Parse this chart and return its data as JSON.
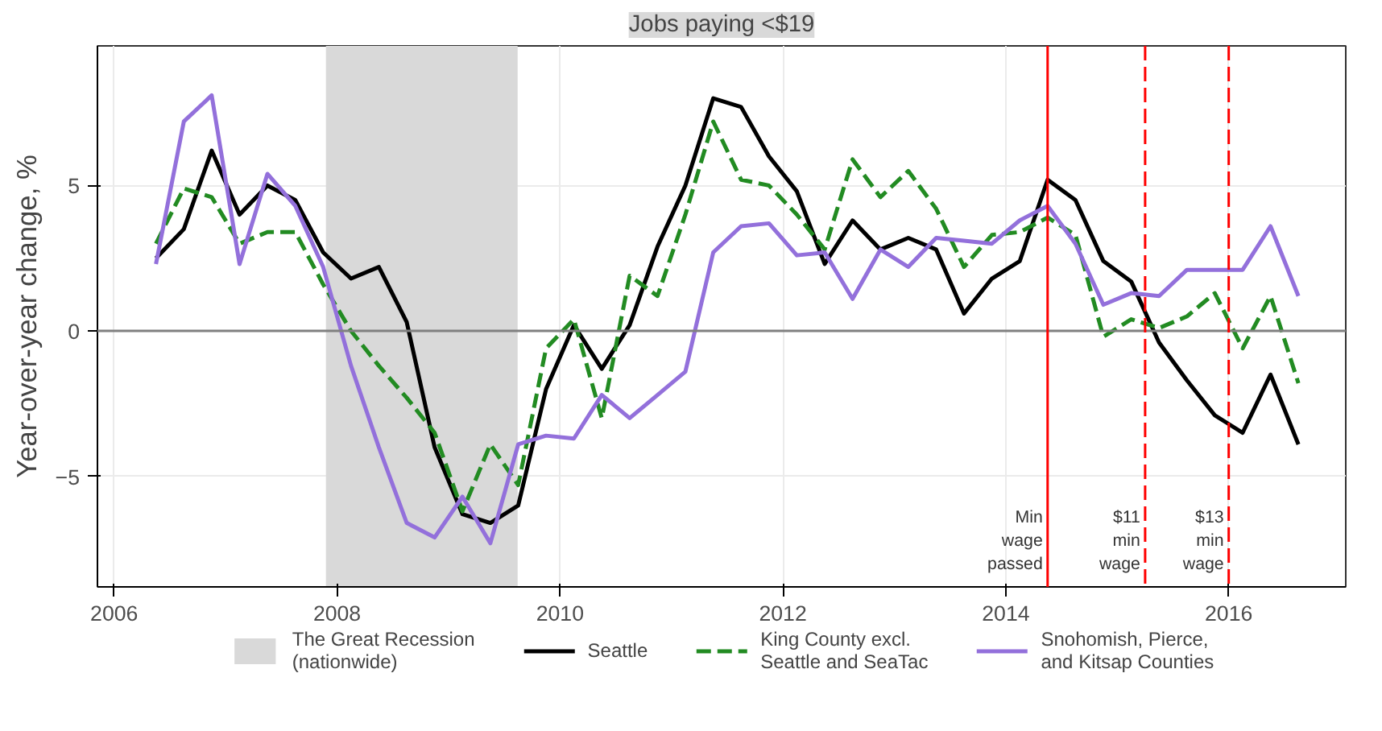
{
  "chart_data": {
    "type": "line",
    "title": "Jobs paying <$19",
    "ylabel": "Year-over-year change, %",
    "x": [
      2006.375,
      2006.625,
      2006.875,
      2007.125,
      2007.375,
      2007.625,
      2007.875,
      2008.125,
      2008.375,
      2008.625,
      2008.875,
      2009.125,
      2009.375,
      2009.625,
      2009.875,
      2010.125,
      2010.375,
      2010.625,
      2010.875,
      2011.125,
      2011.375,
      2011.625,
      2011.875,
      2012.125,
      2012.375,
      2012.625,
      2012.875,
      2013.125,
      2013.375,
      2013.625,
      2013.875,
      2014.125,
      2014.375,
      2014.625,
      2014.875,
      2015.125,
      2015.375,
      2015.625,
      2015.875,
      2016.125,
      2016.375,
      2016.625
    ],
    "series": [
      {
        "name": "Seattle",
        "color": "#000000",
        "line_style": "solid",
        "values": [
          2.5,
          3.5,
          6.2,
          4.0,
          5.0,
          4.5,
          2.7,
          1.8,
          2.2,
          0.3,
          -4.0,
          -6.3,
          -6.6,
          -6.0,
          -2.0,
          0.2,
          -1.3,
          0.2,
          2.9,
          5.0,
          8.0,
          7.7,
          6.0,
          4.8,
          2.3,
          3.8,
          2.8,
          3.2,
          2.8,
          0.6,
          1.8,
          2.4,
          5.2,
          4.5,
          2.4,
          1.7,
          -0.4,
          -1.7,
          -2.9,
          -3.5,
          -1.5,
          -3.9
        ]
      },
      {
        "name": "King County excl.\nSeattle and SeaTac",
        "color": "#228b22",
        "line_style": "dashed",
        "values": [
          3.0,
          4.9,
          4.6,
          3.0,
          3.4,
          3.4,
          1.6,
          0.0,
          -1.2,
          -2.3,
          -3.5,
          -6.2,
          -3.9,
          -5.3,
          -0.6,
          0.4,
          -3.0,
          1.9,
          1.2,
          4.0,
          7.2,
          5.2,
          5.0,
          4.0,
          2.8,
          5.9,
          4.6,
          5.5,
          4.2,
          2.2,
          3.3,
          3.4,
          3.9,
          3.3,
          -0.2,
          0.4,
          0.1,
          0.5,
          1.3,
          -0.6,
          1.2,
          -1.8
        ]
      },
      {
        "name": "Snohomish, Pierce,\nand Kitsap Counties",
        "color": "#9370db",
        "line_style": "solid",
        "values": [
          2.3,
          7.2,
          8.1,
          2.3,
          5.4,
          4.3,
          2.2,
          -1.2,
          -4.0,
          -6.6,
          -7.1,
          -5.7,
          -7.3,
          -3.9,
          -3.6,
          -3.7,
          -2.2,
          -3.0,
          -2.2,
          -1.4,
          2.7,
          3.6,
          3.7,
          2.6,
          2.7,
          1.1,
          2.8,
          2.2,
          3.2,
          3.1,
          3.0,
          3.8,
          4.3,
          3.0,
          0.9,
          1.3,
          1.2,
          2.1,
          2.1,
          2.1,
          3.6,
          1.2
        ]
      }
    ],
    "xlim": [
      2005.85,
      2017.05
    ],
    "ylim": [
      -8.8,
      9.8
    ],
    "xticks": [
      2006,
      2008,
      2010,
      2012,
      2014,
      2016
    ],
    "yticks": [
      -5,
      0,
      5
    ],
    "bands": [
      {
        "axis": "x",
        "from": 2007.9,
        "to": 2009.62,
        "label": "The Great Recession\n(nationwide)",
        "color": "#d9d9d9"
      }
    ],
    "ref_lines": [
      {
        "axis": "y",
        "value": 0,
        "color": "#808080",
        "line_style": "solid"
      },
      {
        "axis": "x",
        "value": 2014.375,
        "label": "Min\nwage\npassed",
        "color": "#ff0000",
        "line_style": "solid"
      },
      {
        "axis": "x",
        "value": 2015.25,
        "label": "$11\nmin\nwage",
        "color": "#ff0000",
        "line_style": "dashed"
      },
      {
        "axis": "x",
        "value": 2016.0,
        "label": "$13\nmin\nwage",
        "color": "#ff0000",
        "line_style": "dashed"
      }
    ],
    "grid": true,
    "legend": "bottom"
  }
}
